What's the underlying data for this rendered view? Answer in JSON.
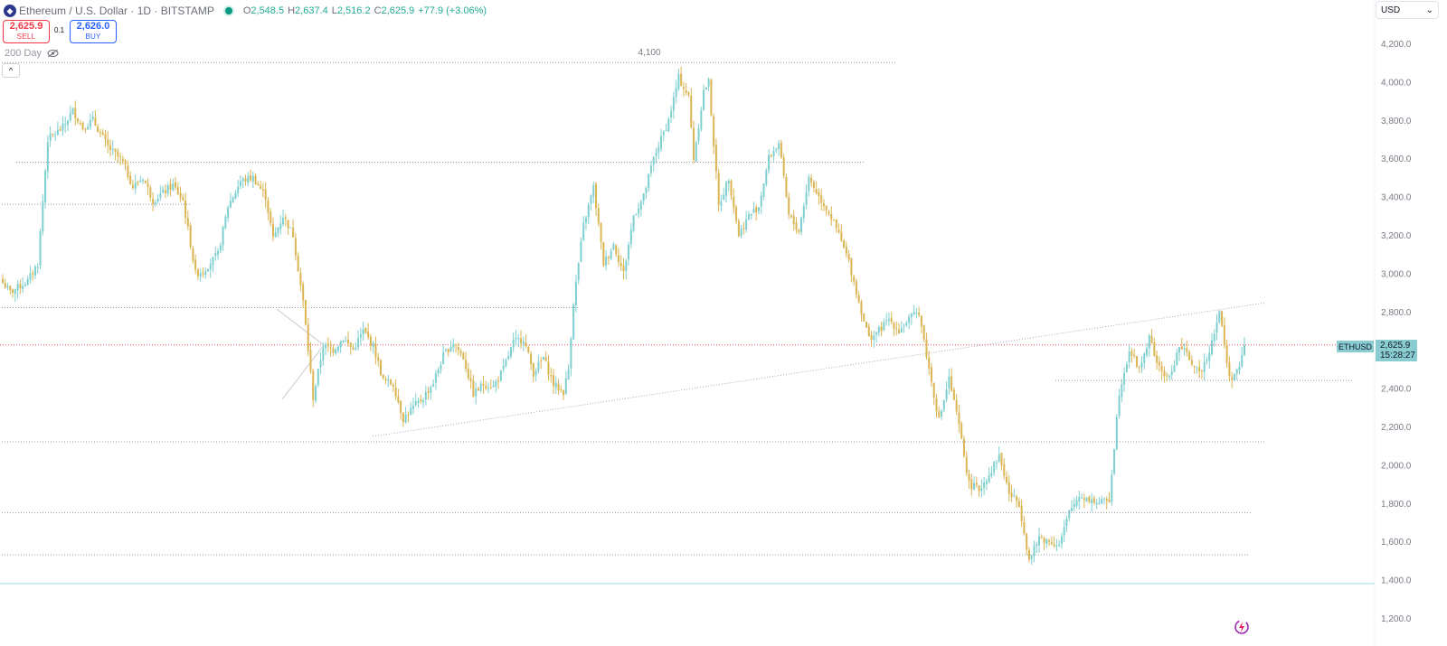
{
  "header": {
    "symbol_title": "Ethereum / U.S. Dollar · 1D · BITSTAMP",
    "ohlc": {
      "open_label": "O",
      "open": "2,548.5",
      "high_label": "H",
      "high": "2,637.4",
      "low_label": "L",
      "low": "2,516.2",
      "close_label": "C",
      "close": "2,625.9",
      "change": "+77.9 (+3.06%)"
    }
  },
  "trade": {
    "sell_price": "2,625.9",
    "sell_label": "SELL",
    "buy_price": "2,626.0",
    "buy_label": "BUY",
    "spread": "0.1"
  },
  "indicator": {
    "label": "200 Day",
    "icon": "eye-off-icon"
  },
  "currency": {
    "label": "USD",
    "icon": "chevron-down-icon"
  },
  "price_axis_tag": {
    "symbol": "ETHUSD",
    "price": "2,625.9",
    "countdown": "15:28:27"
  },
  "colors": {
    "up": "#7ecfd0",
    "down": "#dcb552",
    "axis_text": "#787b86",
    "level_line": "#9598a1",
    "current_line": "#f7525f"
  },
  "chart_data": {
    "type": "candlestick",
    "timeframe": "1D",
    "ylim": [
      1100,
      4300
    ],
    "y_ticks": [
      "4,200.0",
      "4,000.0",
      "3,800.0",
      "3,600.0",
      "3,400.0",
      "3,200.0",
      "3,000.0",
      "2,800.0",
      "2,600.0",
      "2,400.0",
      "2,200.0",
      "2,000.0",
      "1,800.0",
      "1,600.0",
      "1,400.0",
      "1,200.0"
    ],
    "annotations": [
      {
        "text": "4,100",
        "value": 4100
      }
    ],
    "horizontal_levels": [
      4100,
      3580,
      3360,
      2820,
      2440,
      2120,
      1750,
      1530,
      1380
    ],
    "current_price": 2625.9,
    "anchors": [
      [
        0,
        2950
      ],
      [
        3,
        2900
      ],
      [
        10,
        2960
      ],
      [
        14,
        3050
      ],
      [
        18,
        3700
      ],
      [
        24,
        3760
      ],
      [
        28,
        3850
      ],
      [
        32,
        3760
      ],
      [
        36,
        3800
      ],
      [
        42,
        3660
      ],
      [
        48,
        3580
      ],
      [
        52,
        3450
      ],
      [
        56,
        3500
      ],
      [
        60,
        3380
      ],
      [
        64,
        3420
      ],
      [
        68,
        3460
      ],
      [
        72,
        3380
      ],
      [
        77,
        3000
      ],
      [
        80,
        3010
      ],
      [
        86,
        3100
      ],
      [
        90,
        3350
      ],
      [
        95,
        3480
      ],
      [
        100,
        3500
      ],
      [
        105,
        3400
      ],
      [
        108,
        3180
      ],
      [
        112,
        3300
      ],
      [
        116,
        3200
      ],
      [
        120,
        2850
      ],
      [
        124,
        2350
      ],
      [
        128,
        2620
      ],
      [
        132,
        2600
      ],
      [
        136,
        2660
      ],
      [
        140,
        2600
      ],
      [
        144,
        2700
      ],
      [
        148,
        2620
      ],
      [
        152,
        2440
      ],
      [
        156,
        2420
      ],
      [
        160,
        2240
      ],
      [
        164,
        2300
      ],
      [
        168,
        2350
      ],
      [
        172,
        2430
      ],
      [
        176,
        2570
      ],
      [
        180,
        2640
      ],
      [
        184,
        2560
      ],
      [
        188,
        2370
      ],
      [
        192,
        2420
      ],
      [
        196,
        2410
      ],
      [
        200,
        2500
      ],
      [
        204,
        2640
      ],
      [
        208,
        2660
      ],
      [
        212,
        2480
      ],
      [
        216,
        2560
      ],
      [
        220,
        2420
      ],
      [
        224,
        2380
      ],
      [
        226,
        2500
      ],
      [
        228,
        2850
      ],
      [
        232,
        3250
      ],
      [
        236,
        3450
      ],
      [
        240,
        3050
      ],
      [
        244,
        3150
      ],
      [
        248,
        3000
      ],
      [
        252,
        3300
      ],
      [
        256,
        3400
      ],
      [
        260,
        3600
      ],
      [
        266,
        3800
      ],
      [
        270,
        4020
      ],
      [
        274,
        3920
      ],
      [
        276,
        3600
      ],
      [
        280,
        3950
      ],
      [
        282,
        4000
      ],
      [
        286,
        3350
      ],
      [
        290,
        3500
      ],
      [
        294,
        3200
      ],
      [
        298,
        3300
      ],
      [
        302,
        3350
      ],
      [
        306,
        3600
      ],
      [
        310,
        3680
      ],
      [
        314,
        3300
      ],
      [
        318,
        3220
      ],
      [
        322,
        3500
      ],
      [
        326,
        3400
      ],
      [
        330,
        3320
      ],
      [
        334,
        3200
      ],
      [
        338,
        3060
      ],
      [
        342,
        2850
      ],
      [
        346,
        2660
      ],
      [
        350,
        2700
      ],
      [
        354,
        2760
      ],
      [
        358,
        2700
      ],
      [
        362,
        2760
      ],
      [
        366,
        2800
      ],
      [
        370,
        2500
      ],
      [
        374,
        2230
      ],
      [
        378,
        2450
      ],
      [
        382,
        2200
      ],
      [
        386,
        1900
      ],
      [
        390,
        1870
      ],
      [
        394,
        1950
      ],
      [
        398,
        2050
      ],
      [
        402,
        1850
      ],
      [
        406,
        1800
      ],
      [
        410,
        1500
      ],
      [
        414,
        1620
      ],
      [
        418,
        1600
      ],
      [
        422,
        1580
      ],
      [
        426,
        1750
      ],
      [
        430,
        1840
      ],
      [
        434,
        1820
      ],
      [
        438,
        1800
      ],
      [
        442,
        1820
      ],
      [
        446,
        2380
      ],
      [
        450,
        2600
      ],
      [
        454,
        2500
      ],
      [
        458,
        2660
      ],
      [
        462,
        2500
      ],
      [
        466,
        2450
      ],
      [
        470,
        2620
      ],
      [
        474,
        2560
      ],
      [
        478,
        2470
      ],
      [
        482,
        2600
      ],
      [
        486,
        2800
      ],
      [
        490,
        2450
      ],
      [
        494,
        2500
      ],
      [
        496,
        2625.9
      ]
    ]
  }
}
